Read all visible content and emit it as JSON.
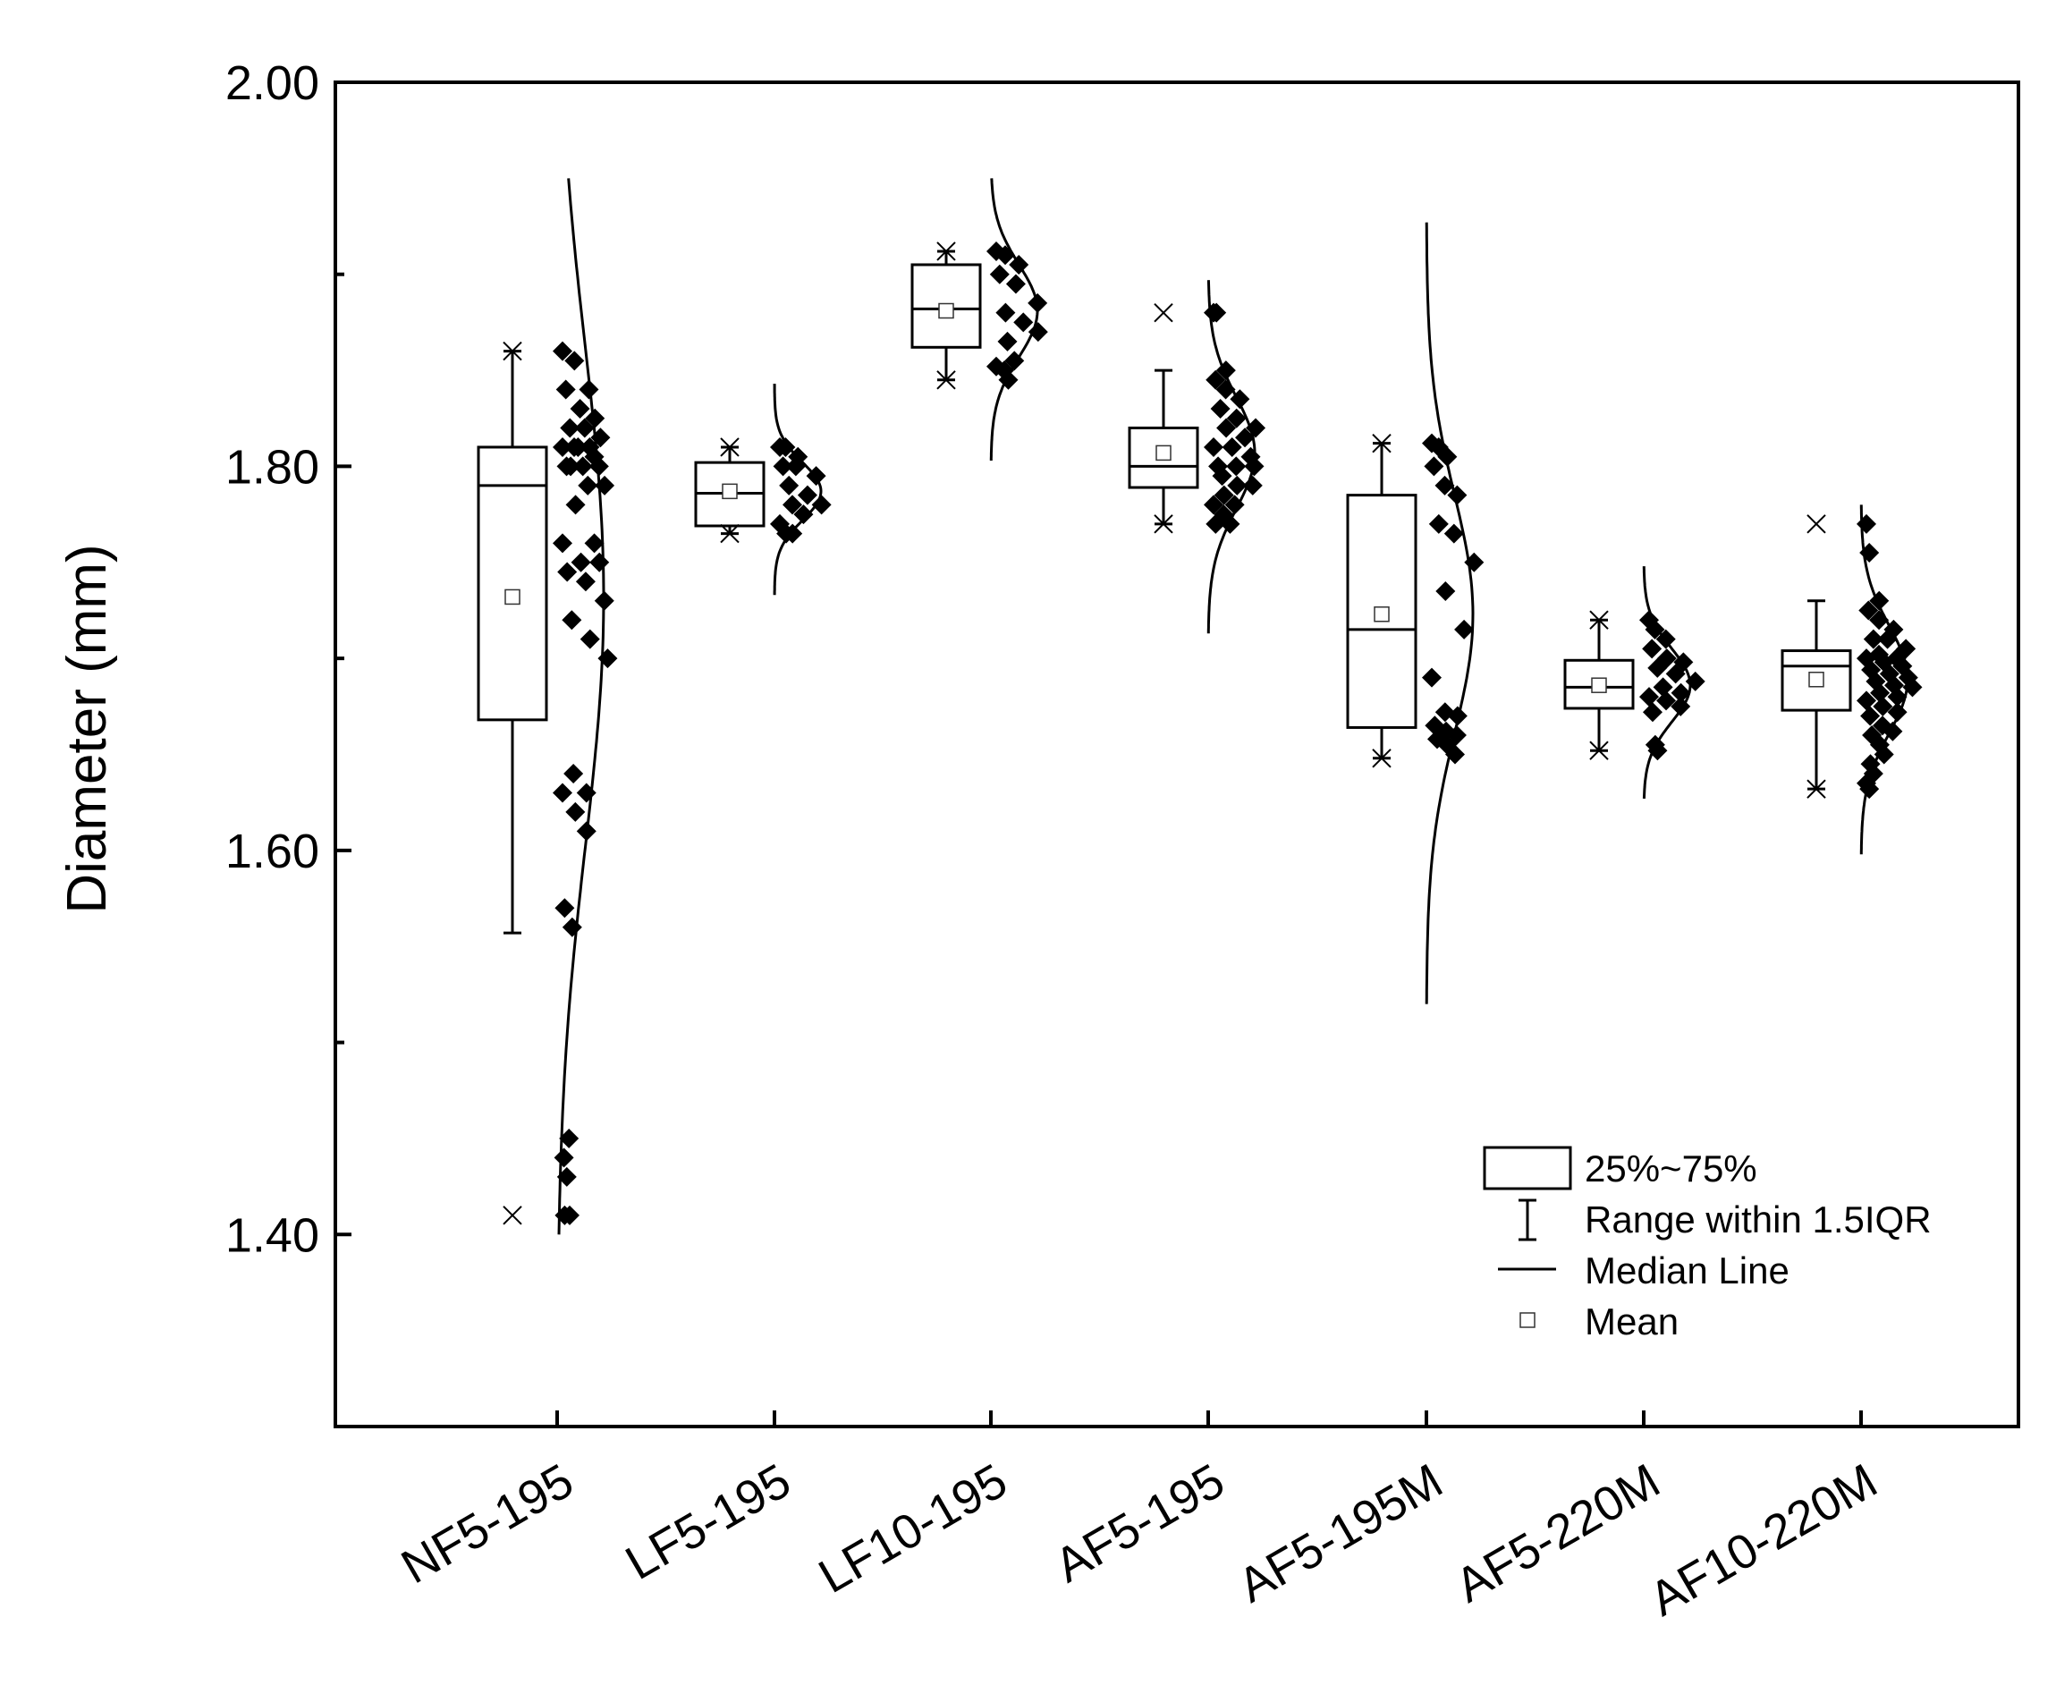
{
  "chart_data": {
    "type": "box",
    "title": "",
    "xlabel": "",
    "ylabel": "Diameter (mm)",
    "ylim": [
      1.3,
      2.0
    ],
    "ytick_labels": [
      "2.00",
      "1.80",
      "1.60",
      "1.40"
    ],
    "ytick_values": [
      2.0,
      1.8,
      1.6,
      1.4
    ],
    "yminor_ticks": [
      1.9,
      1.7,
      1.5
    ],
    "categories": [
      "NF5-195",
      "LF5-195",
      "LF10-195",
      "AF5-195",
      "AF5-195M",
      "AF5-220M",
      "AF10-220M"
    ],
    "boxes": [
      {
        "q1": 1.668,
        "median": 1.79,
        "q3": 1.81,
        "mean": 1.732,
        "whisker_low": 1.557,
        "whisker_high": 1.86,
        "min": 1.41,
        "max": 1.86
      },
      {
        "q1": 1.769,
        "median": 1.786,
        "q3": 1.802,
        "mean": 1.787,
        "whisker_low": 1.765,
        "whisker_high": 1.81,
        "min": 1.765,
        "max": 1.81
      },
      {
        "q1": 1.862,
        "median": 1.882,
        "q3": 1.905,
        "mean": 1.881,
        "whisker_low": 1.845,
        "whisker_high": 1.912,
        "min": 1.845,
        "max": 1.912
      },
      {
        "q1": 1.789,
        "median": 1.8,
        "q3": 1.82,
        "mean": 1.807,
        "whisker_low": 1.77,
        "whisker_high": 1.85,
        "min": 1.77,
        "max": 1.88
      },
      {
        "q1": 1.664,
        "median": 1.715,
        "q3": 1.785,
        "mean": 1.723,
        "whisker_low": 1.648,
        "whisker_high": 1.812,
        "min": 1.648,
        "max": 1.812
      },
      {
        "q1": 1.674,
        "median": 1.685,
        "q3": 1.699,
        "mean": 1.686,
        "whisker_low": 1.652,
        "whisker_high": 1.72,
        "min": 1.652,
        "max": 1.72
      },
      {
        "q1": 1.673,
        "median": 1.696,
        "q3": 1.704,
        "mean": 1.689,
        "whisker_low": 1.632,
        "whisker_high": 1.73,
        "min": 1.632,
        "max": 1.77
      }
    ],
    "points": [
      [
        1.86,
        1.855,
        1.84,
        1.84,
        1.83,
        1.825,
        1.82,
        1.82,
        1.815,
        1.81,
        1.81,
        1.81,
        1.81,
        1.805,
        1.8,
        1.8,
        1.8,
        1.8,
        1.79,
        1.79,
        1.78,
        1.76,
        1.76,
        1.75,
        1.75,
        1.745,
        1.74,
        1.73,
        1.72,
        1.71,
        1.7,
        1.64,
        1.63,
        1.63,
        1.62,
        1.61,
        1.57,
        1.56,
        1.45,
        1.44,
        1.43,
        1.41,
        1.41
      ],
      [
        1.81,
        1.81,
        1.805,
        1.8,
        1.8,
        1.795,
        1.79,
        1.785,
        1.78,
        1.78,
        1.775,
        1.77,
        1.765,
        1.765
      ],
      [
        1.912,
        1.91,
        1.905,
        1.9,
        1.895,
        1.885,
        1.88,
        1.875,
        1.87,
        1.865,
        1.855,
        1.852,
        1.85,
        1.845
      ],
      [
        1.88,
        1.88,
        1.85,
        1.845,
        1.84,
        1.835,
        1.83,
        1.825,
        1.82,
        1.82,
        1.815,
        1.81,
        1.81,
        1.805,
        1.8,
        1.8,
        1.8,
        1.795,
        1.79,
        1.79,
        1.785,
        1.78,
        1.78,
        1.775,
        1.77,
        1.77
      ],
      [
        1.812,
        1.81,
        1.805,
        1.8,
        1.79,
        1.785,
        1.77,
        1.765,
        1.75,
        1.735,
        1.715,
        1.69,
        1.672,
        1.67,
        1.665,
        1.662,
        1.66,
        1.658,
        1.655,
        1.65
      ],
      [
        1.72,
        1.715,
        1.71,
        1.705,
        1.7,
        1.698,
        1.695,
        1.692,
        1.688,
        1.685,
        1.682,
        1.68,
        1.678,
        1.675,
        1.672,
        1.655,
        1.652
      ],
      [
        1.77,
        1.755,
        1.73,
        1.725,
        1.72,
        1.715,
        1.71,
        1.71,
        1.705,
        1.702,
        1.7,
        1.7,
        1.698,
        1.696,
        1.694,
        1.692,
        1.69,
        1.688,
        1.686,
        1.685,
        1.682,
        1.68,
        1.678,
        1.675,
        1.672,
        1.67,
        1.665,
        1.662,
        1.66,
        1.655,
        1.65,
        1.645,
        1.64,
        1.635,
        1.632
      ]
    ],
    "distribution_curves": [
      {
        "mean": 1.732,
        "sd": 0.13,
        "y_top": 1.95,
        "y_bottom": 1.4
      },
      {
        "mean": 1.787,
        "sd": 0.015,
        "y_top": 1.843,
        "y_bottom": 1.733
      },
      {
        "mean": 1.881,
        "sd": 0.024,
        "y_top": 1.95,
        "y_bottom": 1.803
      },
      {
        "mean": 1.807,
        "sd": 0.029,
        "y_top": 1.897,
        "y_bottom": 1.713
      },
      {
        "mean": 1.723,
        "sd": 0.062,
        "y_top": 1.927,
        "y_bottom": 1.52
      },
      {
        "mean": 1.686,
        "sd": 0.019,
        "y_top": 1.748,
        "y_bottom": 1.627
      },
      {
        "mean": 1.689,
        "sd": 0.028,
        "y_top": 1.78,
        "y_bottom": 1.598
      }
    ],
    "grid": false,
    "legend_position": "bottom-right",
    "legend": [
      {
        "symbol": "box",
        "label": "25%~75%"
      },
      {
        "symbol": "whisker",
        "label": "Range within 1.5IQR"
      },
      {
        "symbol": "median-line",
        "label": "Median Line"
      },
      {
        "symbol": "mean-square",
        "label": "Mean"
      }
    ]
  }
}
